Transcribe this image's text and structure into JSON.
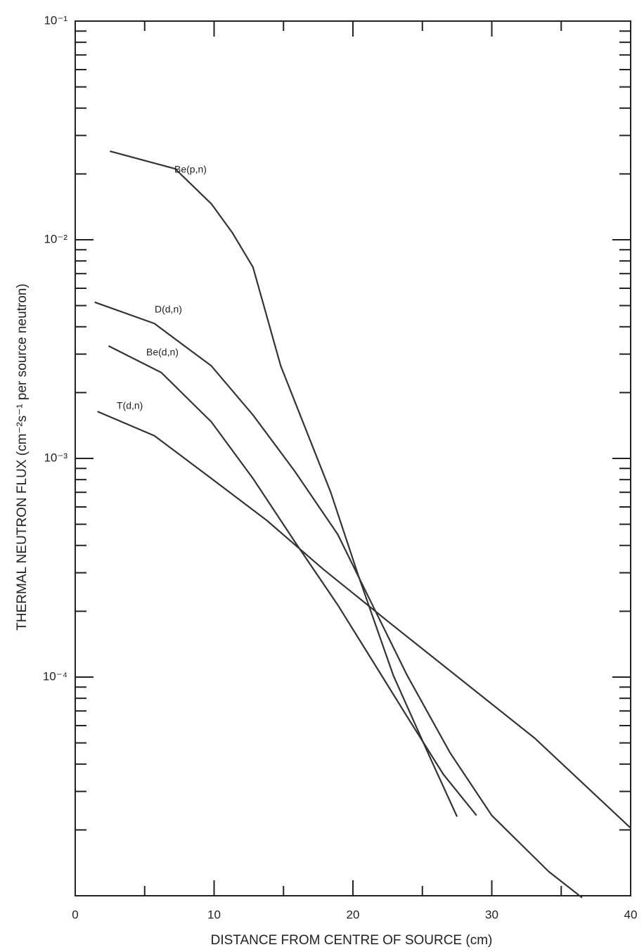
{
  "chart_data": {
    "type": "line",
    "y_label": "THERMAL NEUTRON FLUX (cm⁻²s⁻¹ per source neutron)",
    "x_label": "DISTANCE FROM CENTRE OF SOURCE (cm)",
    "log_y": true,
    "xlim": [
      0,
      40
    ],
    "ylim": [
      1e-05,
      0.1
    ],
    "xticks": [
      0,
      10,
      20,
      30,
      40
    ],
    "minor_xticks": [
      5,
      15,
      25,
      35
    ],
    "yticks": [
      {
        "value": 0.1,
        "label": "10⁻¹"
      },
      {
        "value": 0.01,
        "label": "10⁻²"
      },
      {
        "value": 0.001,
        "label": "10⁻³"
      },
      {
        "value": 0.0001,
        "label": "10⁻⁴"
      }
    ],
    "minor_yticks": [
      0.02,
      0.03,
      0.04,
      0.05,
      0.06,
      0.07,
      0.08,
      0.09,
      0.002,
      0.003,
      0.004,
      0.005,
      0.006,
      0.007,
      0.008,
      0.009,
      0.0002,
      0.0003,
      0.0004,
      0.0005,
      0.0006,
      0.0007,
      0.0008,
      0.0009,
      2e-05,
      3e-05,
      4e-05,
      5e-05,
      6e-05,
      7e-05,
      8e-05,
      9e-05
    ],
    "series": [
      {
        "name": "Be(p,n)",
        "color": "#333333",
        "x": [
          2.5,
          7.2,
          9.8,
          11.3,
          12.8,
          14.8,
          18.4,
          20.4,
          22.9,
          25.5,
          27.5
        ],
        "values": [
          0.0254,
          0.0211,
          0.0146,
          0.0108,
          0.0075,
          0.00265,
          0.0007,
          0.00029,
          0.000102,
          4.36e-05,
          2.3e-05
        ]
      },
      {
        "name": "D(d,n)",
        "color": "#333333",
        "x": [
          1.4,
          5.7,
          9.8,
          12.8,
          15.8,
          18.9,
          21.4,
          23.9,
          27,
          30,
          34.1,
          36.5
        ],
        "values": [
          0.00518,
          0.00414,
          0.00265,
          0.00158,
          0.000875,
          0.00045,
          0.000214,
          0.000102,
          4.5e-05,
          2.33e-05,
          1.29e-05,
          9.8e-06
        ]
      },
      {
        "name": "Be(d,n)",
        "color": "#333333",
        "x": [
          2.4,
          6.2,
          9.8,
          12.8,
          15.8,
          18.9,
          21.4,
          23.9,
          26.5,
          28.9
        ],
        "values": [
          0.00327,
          0.00247,
          0.00147,
          0.00081,
          0.000417,
          0.000214,
          0.000119,
          6.6e-05,
          3.6e-05,
          2.33e-05
        ]
      },
      {
        "name": "T(d,n)",
        "color": "#333333",
        "x": [
          1.6,
          5.7,
          9.8,
          13.8,
          17.9,
          22.9,
          28,
          33.1,
          40
        ],
        "values": [
          0.00164,
          0.00127,
          0.00081,
          0.00052,
          0.00031,
          0.000172,
          9.5e-05,
          5.25e-05,
          2.04e-05
        ]
      }
    ]
  }
}
